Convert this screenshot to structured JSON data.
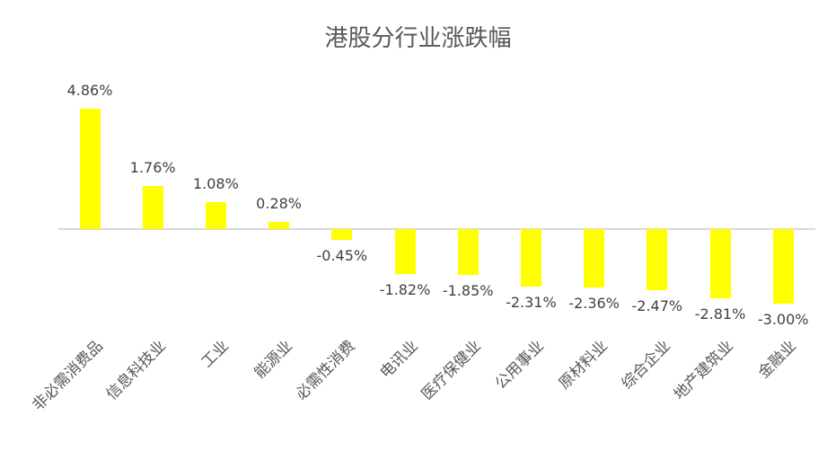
{
  "chart_data": {
    "type": "bar",
    "title": "港股分行业涨跌幅",
    "xlabel": "",
    "ylabel": "",
    "categories": [
      "非必需消费品",
      "信息科技业",
      "工业",
      "能源业",
      "必需性消费",
      "电讯业",
      "医疗保健业",
      "公用事业",
      "原材料业",
      "综合企业",
      "地产建筑业",
      "金融业"
    ],
    "values": [
      4.86,
      1.76,
      1.08,
      0.28,
      -0.45,
      -1.82,
      -1.85,
      -2.31,
      -2.36,
      -2.47,
      -2.81,
      -3.0
    ],
    "labels": [
      "4.86%",
      "1.76%",
      "1.08%",
      "0.28%",
      "-0.45%",
      "-1.82%",
      "-1.85%",
      "-2.31%",
      "-2.36%",
      "-2.47%",
      "-2.81%",
      "-3.00%"
    ],
    "unit": "%",
    "grid": false,
    "legend": "none",
    "colors": {
      "bar": "#ffff00",
      "axis": "#d9d9d9",
      "title": "#595959",
      "label": "#404040"
    }
  }
}
